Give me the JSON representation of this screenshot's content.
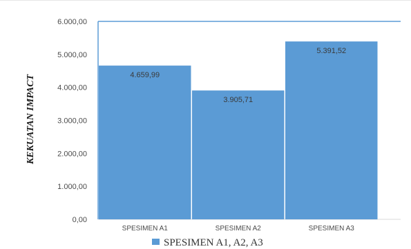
{
  "chart_data": {
    "type": "bar",
    "title": "",
    "xlabel": "",
    "ylabel": "KEKUATAN IMPACT",
    "categories": [
      "SPESIMEN A1",
      "SPESIMEN A2",
      "SPESIMEN A3"
    ],
    "values": [
      4659.99,
      3905.71,
      5391.52
    ],
    "value_labels": [
      "4.659,99",
      "3.905,71",
      "5.391,52"
    ],
    "ylim": [
      0,
      6000
    ],
    "yticks": [
      0,
      1000,
      2000,
      3000,
      4000,
      5000,
      6000
    ],
    "ytick_labels": [
      "0,00",
      "1.000,00",
      "2.000,00",
      "3.000,00",
      "4.000,00",
      "5.000,00",
      "6.000,00"
    ],
    "legend": {
      "label": "SPESIMEN A1, A2, A3",
      "position": "bottom"
    },
    "grid": false,
    "bar_color": "#5b9bd5",
    "frame_color": "#5b9bd5"
  }
}
